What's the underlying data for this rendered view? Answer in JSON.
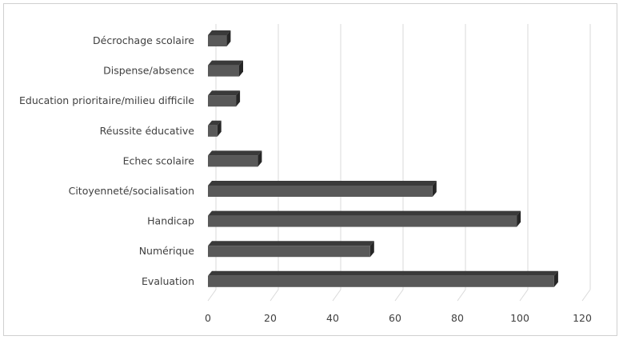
{
  "chart_data": {
    "type": "bar",
    "orientation": "horizontal",
    "style": "3d",
    "categories": [
      "Décrochage scolaire",
      "Dispense/absence",
      "Education prioritaire/milieu difficile",
      "Réussite éducative",
      "Echec scolaire",
      "Citoyenneté/socialisation",
      "Handicap",
      "Numérique",
      "Evaluation"
    ],
    "values": [
      6,
      10,
      9,
      3,
      16,
      72,
      99,
      52,
      111
    ],
    "xlim": [
      0,
      120
    ],
    "xticks": [
      "0",
      "20",
      "40",
      "60",
      "80",
      "100",
      "120"
    ],
    "grid": true,
    "legend": "none",
    "bar_color": "#595959",
    "bar_top_color": "#3a3a3a",
    "bar_side_color": "#262626"
  }
}
